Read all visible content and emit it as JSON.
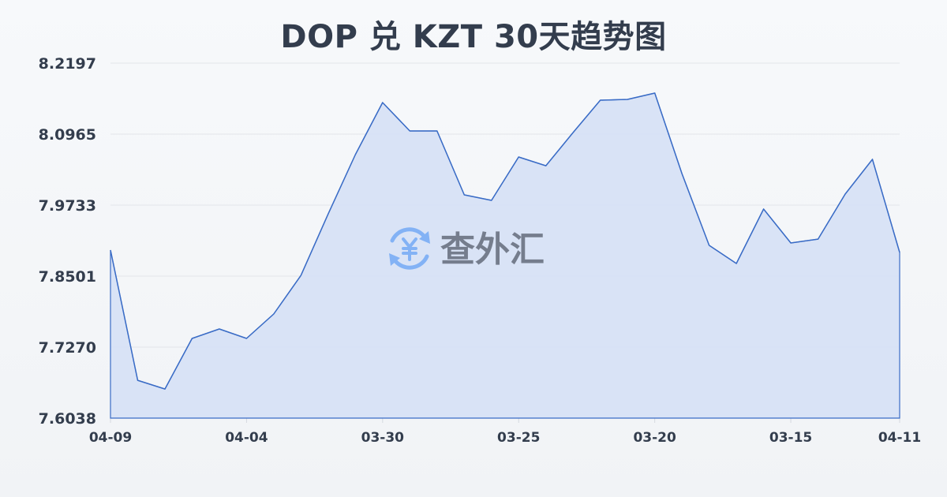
{
  "title": "DOP 兑 KZT 30天趋势图",
  "watermark": {
    "icon": "yen-exchange-icon",
    "text": "查外汇",
    "icon_color": "#7fb0f5",
    "text_color": "#707888"
  },
  "colors": {
    "line": "#3a6cc6",
    "fill": "#d7e1f5",
    "grid": "#e2e5ea",
    "text": "#333d4d"
  },
  "chart_data": {
    "type": "area",
    "title": "DOP 兑 KZT 30天趋势图",
    "xlabel": "",
    "ylabel": "",
    "ylim": [
      7.6038,
      8.2197
    ],
    "yticks": [
      "8.2197",
      "8.0965",
      "7.9733",
      "7.8501",
      "7.7270",
      "7.6038"
    ],
    "xtick_labels": [
      {
        "index": 0,
        "label": "04-09"
      },
      {
        "index": 5,
        "label": "04-04"
      },
      {
        "index": 10,
        "label": "03-30"
      },
      {
        "index": 15,
        "label": "03-25"
      },
      {
        "index": 20,
        "label": "03-20"
      },
      {
        "index": 25,
        "label": "03-15"
      },
      {
        "index": 29,
        "label": "04-11"
      }
    ],
    "grid": true,
    "legend": "none",
    "values": [
      7.8953,
      7.6694,
      7.6543,
      7.742,
      7.7584,
      7.742,
      7.7844,
      7.8515,
      7.9582,
      8.0609,
      8.1513,
      8.102,
      8.102,
      7.9911,
      7.9815,
      8.0568,
      8.0417,
      8.0992,
      8.1554,
      8.1567,
      8.1677,
      8.0281,
      7.9035,
      7.872,
      7.9665,
      7.9076,
      7.9144,
      7.9925,
      8.0527,
      7.8912
    ]
  }
}
